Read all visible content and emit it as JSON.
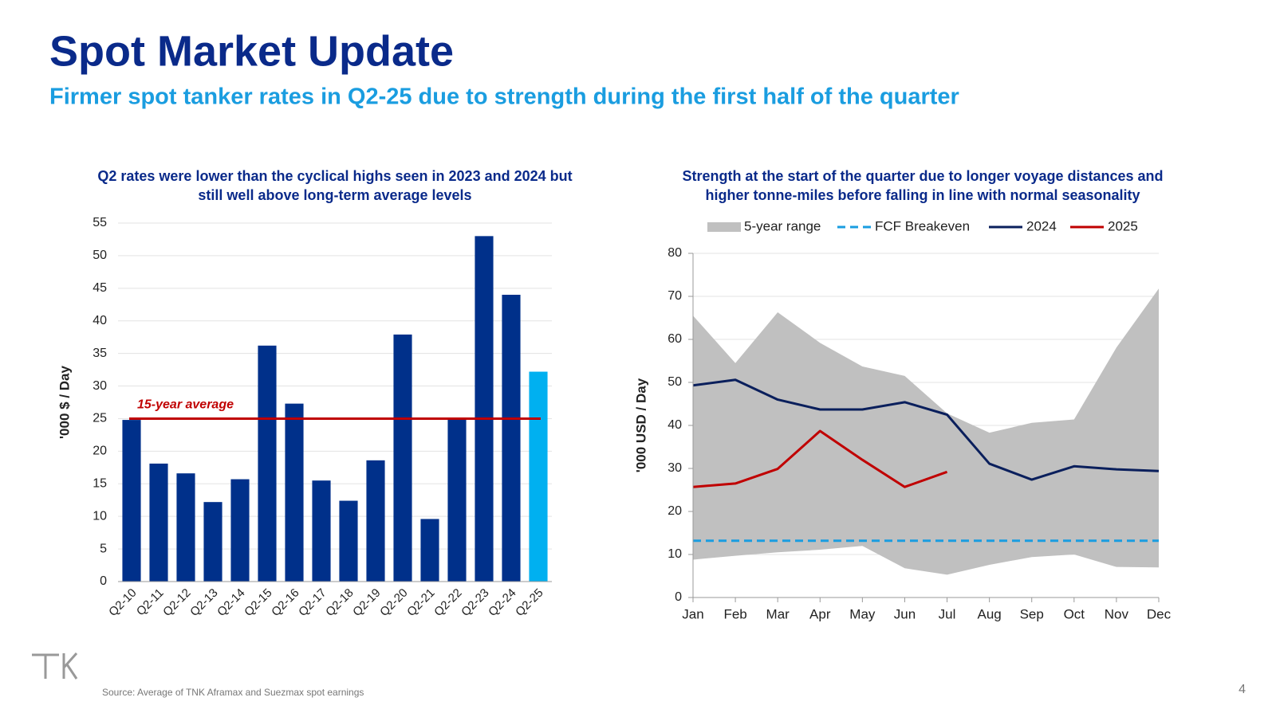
{
  "header": {
    "title": "Spot Market Update",
    "subtitle": "Firmer spot tanker rates in Q2-25 due to strength during the first half of the quarter"
  },
  "chart_data": [
    {
      "type": "bar",
      "title": [
        "Q2 rates were lower than the cyclical highs seen in 2023 and 2024 but",
        "still well above long-term average levels"
      ],
      "ylabel": "'000 $ / Day",
      "categories": [
        "Q2-10",
        "Q2-11",
        "Q2-12",
        "Q2-13",
        "Q2-14",
        "Q2-15",
        "Q2-16",
        "Q2-17",
        "Q2-18",
        "Q2-19",
        "Q2-20",
        "Q2-21",
        "Q2-22",
        "Q2-23",
        "Q2-24",
        "Q2-25"
      ],
      "values": [
        24.8,
        18.1,
        16.6,
        12.2,
        15.7,
        36.2,
        27.3,
        15.5,
        12.4,
        18.6,
        37.9,
        9.6,
        25.1,
        53.0,
        44.0,
        32.2
      ],
      "colors": [
        "#00308a",
        "#00308a",
        "#00308a",
        "#00308a",
        "#00308a",
        "#00308a",
        "#00308a",
        "#00308a",
        "#00308a",
        "#00308a",
        "#00308a",
        "#00308a",
        "#00308a",
        "#00308a",
        "#00308a",
        "#00b0f0"
      ],
      "reference_line": {
        "label": "15-year average",
        "value": 25,
        "color": "#c00000"
      },
      "ylim": [
        0,
        55
      ],
      "yticks": [
        0,
        5,
        10,
        15,
        20,
        25,
        30,
        35,
        40,
        45,
        50,
        55
      ],
      "grid": true
    },
    {
      "type": "line",
      "title": [
        "Strength at the start of the quarter due to longer voyage distances and",
        "higher tonne-miles before falling in line with normal seasonality"
      ],
      "ylabel": "'000 USD / Day",
      "categories": [
        "Jan",
        "Feb",
        "Mar",
        "Apr",
        "May",
        "Jun",
        "Jul",
        "Aug",
        "Sep",
        "Oct",
        "Nov",
        "Dec"
      ],
      "range": {
        "name": "5-year range",
        "color": "#c0c0c0",
        "high": [
          65.5,
          54.5,
          66.3,
          59.2,
          53.7,
          51.5,
          42.8,
          38.3,
          40.6,
          41.4,
          58.1,
          71.8
        ],
        "low": [
          8.8,
          9.7,
          10.5,
          11.1,
          12.0,
          6.8,
          5.3,
          7.6,
          9.4,
          10.0,
          7.1,
          7.0
        ]
      },
      "series": [
        {
          "name": "FCF Breakeven",
          "color": "#1a9de0",
          "dashed": true,
          "values": [
            13.2,
            13.2,
            13.2,
            13.2,
            13.2,
            13.2,
            13.2,
            13.2,
            13.2,
            13.2,
            13.2,
            13.2
          ]
        },
        {
          "name": "2024",
          "color": "#0a1f5c",
          "dashed": false,
          "values": [
            49.3,
            50.6,
            46.0,
            43.7,
            43.7,
            45.4,
            42.5,
            31.1,
            27.4,
            30.5,
            29.8,
            29.4
          ]
        },
        {
          "name": "2025",
          "color": "#c00000",
          "dashed": false,
          "values": [
            25.7,
            26.5,
            29.9,
            38.7,
            32.0,
            25.7,
            29.2,
            null,
            null,
            null,
            null,
            null
          ]
        }
      ],
      "ylim": [
        0,
        80
      ],
      "yticks": [
        0,
        10,
        20,
        30,
        40,
        50,
        60,
        70,
        80
      ],
      "grid": true
    }
  ],
  "footer": {
    "source": "Source: Average of TNK Aframax and Suezmax spot earnings",
    "page": "4"
  }
}
